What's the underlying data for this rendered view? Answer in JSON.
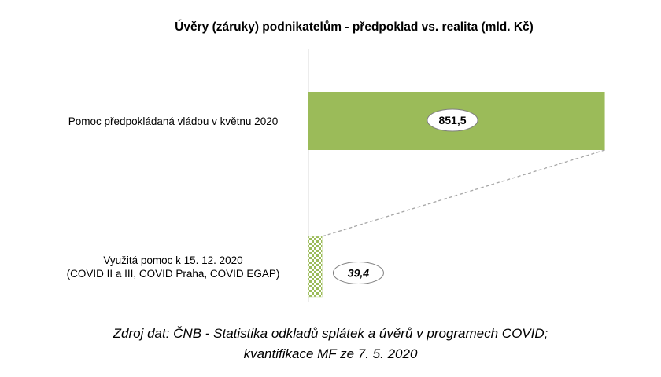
{
  "chart_data": {
    "type": "bar",
    "orientation": "horizontal",
    "title": "Úvěry (záruky) podnikatelům  - předpoklad  vs. realita  (mld. Kč)",
    "categories": [
      [
        "Pomoc předpokládaná vládou v květnu 2020"
      ],
      [
        "Využitá pomoc k 15. 12. 2020",
        "(COVID II a III, COVID Praha, COVID EGAP)"
      ]
    ],
    "values": [
      851.5,
      39.4
    ],
    "value_labels": [
      "851,5",
      "39,4"
    ],
    "xlim": [
      0,
      900
    ],
    "grid": false,
    "legend": "none",
    "colors": {
      "planned": "#9BBB59",
      "used_pattern": "#9BBB59",
      "connector": "#A6A6A6"
    },
    "fill_styles": [
      "solid",
      "checkered"
    ]
  },
  "source": {
    "line1": "Zdroj dat: ČNB - Statistika odkladů splátek a úvěrů v programech COVID;",
    "line2": "kvantifikace MF ze 7. 5. 2020"
  }
}
